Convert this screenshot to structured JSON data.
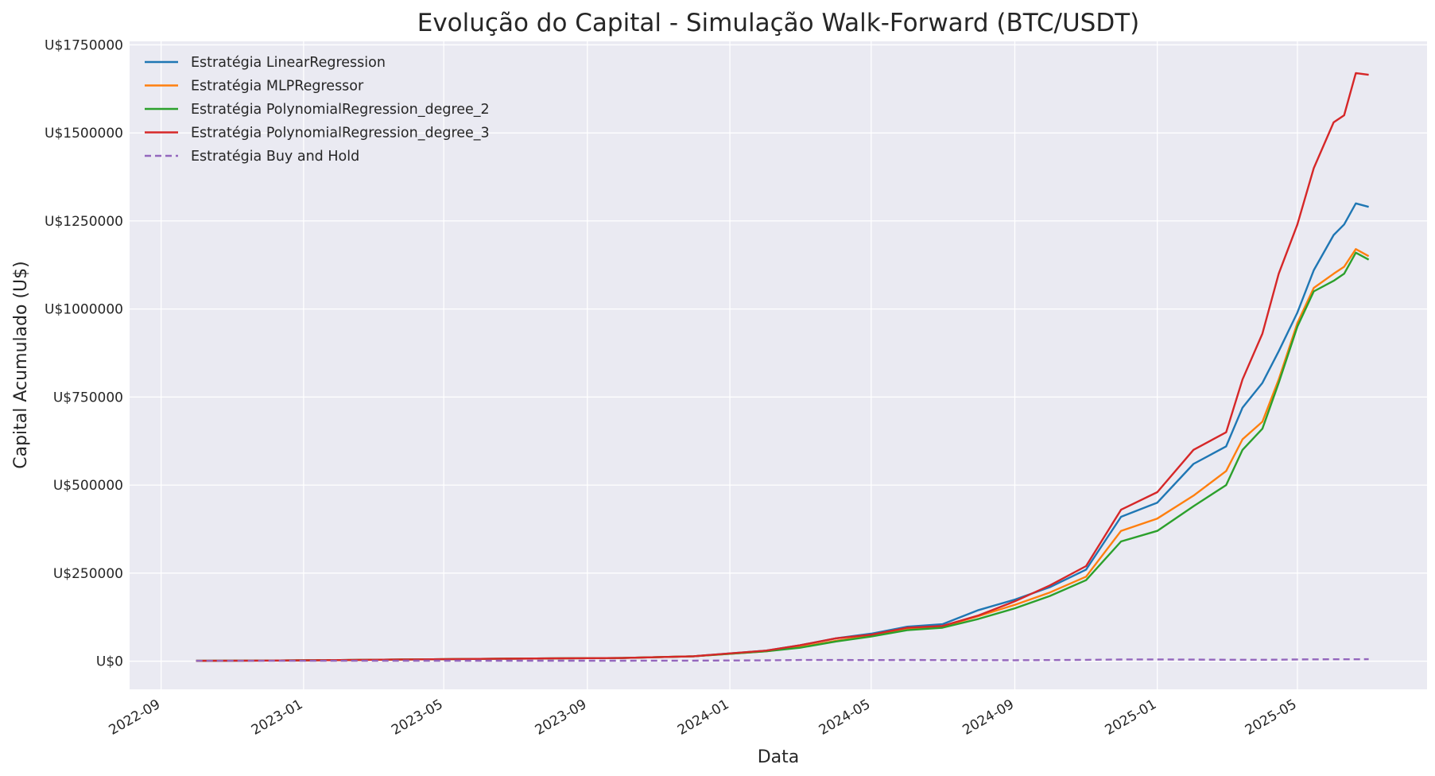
{
  "chart_data": {
    "type": "line",
    "title": "Evolução do Capital - Simulação Walk-Forward (BTC/USDT)",
    "xlabel": "Data",
    "ylabel": "Capital Acumulado (U$)",
    "x_ticks": [
      "2022-09",
      "2023-01",
      "2023-05",
      "2023-09",
      "2024-01",
      "2024-05",
      "2024-09",
      "2025-01",
      "2025-05"
    ],
    "y_ticks": [
      "U$0",
      "U$250000",
      "U$500000",
      "U$750000",
      "U$1000000",
      "U$1250000",
      "U$1500000",
      "U$1750000"
    ],
    "y_tick_values": [
      0,
      250000,
      500000,
      750000,
      1000000,
      1250000,
      1500000,
      1750000
    ],
    "ylim": [
      -80000,
      1760000
    ],
    "xlim": [
      "2022-08-05",
      "2025-08-20"
    ],
    "grid": true,
    "legend_position": "top-left",
    "x": [
      "2022-10-01",
      "2022-12-01",
      "2023-02-01",
      "2023-04-01",
      "2023-06-01",
      "2023-08-01",
      "2023-10-01",
      "2023-12-01",
      "2024-01-01",
      "2024-02-01",
      "2024-03-01",
      "2024-04-01",
      "2024-05-01",
      "2024-06-01",
      "2024-07-01",
      "2024-08-01",
      "2024-09-01",
      "2024-10-01",
      "2024-11-01",
      "2024-12-01",
      "2025-01-01",
      "2025-02-01",
      "2025-03-01",
      "2025-03-15",
      "2025-04-01",
      "2025-04-15",
      "2025-05-01",
      "2025-05-15",
      "2025-06-01",
      "2025-06-10",
      "2025-06-20",
      "2025-07-01"
    ],
    "series": [
      {
        "name": "Estratégia LinearRegression",
        "color": "#1f77b4",
        "dash": false,
        "values": [
          1000,
          1800,
          3000,
          4800,
          6500,
          7800,
          9000,
          14000,
          22000,
          30000,
          45000,
          65000,
          78000,
          98000,
          105000,
          145000,
          175000,
          210000,
          260000,
          410000,
          450000,
          560000,
          610000,
          720000,
          790000,
          880000,
          990000,
          1110000,
          1210000,
          1240000,
          1300000,
          1290000
        ]
      },
      {
        "name": "Estratégia MLPRegressor",
        "color": "#ff7f0e",
        "dash": false,
        "values": [
          1000,
          1800,
          3000,
          4800,
          6500,
          7800,
          9000,
          14000,
          21000,
          28000,
          40000,
          58000,
          72000,
          90000,
          98000,
          128000,
          160000,
          195000,
          240000,
          370000,
          405000,
          470000,
          540000,
          630000,
          680000,
          800000,
          960000,
          1060000,
          1100000,
          1120000,
          1170000,
          1150000
        ]
      },
      {
        "name": "Estratégia PolynomialRegression_degree_2",
        "color": "#2ca02c",
        "dash": false,
        "values": [
          1000,
          1800,
          3000,
          4800,
          6500,
          7800,
          9000,
          14000,
          21000,
          28000,
          38000,
          56000,
          70000,
          88000,
          95000,
          120000,
          150000,
          185000,
          230000,
          340000,
          370000,
          440000,
          500000,
          600000,
          660000,
          790000,
          950000,
          1050000,
          1080000,
          1100000,
          1160000,
          1140000
        ]
      },
      {
        "name": "Estratégia PolynomialRegression_degree_3",
        "color": "#d62728",
        "dash": false,
        "values": [
          1000,
          1800,
          3000,
          4800,
          6500,
          7800,
          9000,
          14000,
          22000,
          30000,
          45000,
          65000,
          75000,
          95000,
          100000,
          130000,
          170000,
          215000,
          270000,
          430000,
          480000,
          600000,
          650000,
          800000,
          930000,
          1100000,
          1240000,
          1400000,
          1530000,
          1550000,
          1670000,
          1665000
        ]
      },
      {
        "name": "Estratégia Buy and Hold",
        "color": "#9467bd",
        "dash": true,
        "values": [
          1000,
          1000,
          1100,
          1200,
          1300,
          1300,
          1300,
          1500,
          2000,
          2400,
          3200,
          3400,
          3000,
          3300,
          3000,
          2800,
          2700,
          3000,
          3800,
          4600,
          4800,
          4400,
          4000,
          4000,
          3900,
          4100,
          4800,
          5200,
          5300,
          5300,
          5400,
          5500
        ]
      }
    ]
  }
}
